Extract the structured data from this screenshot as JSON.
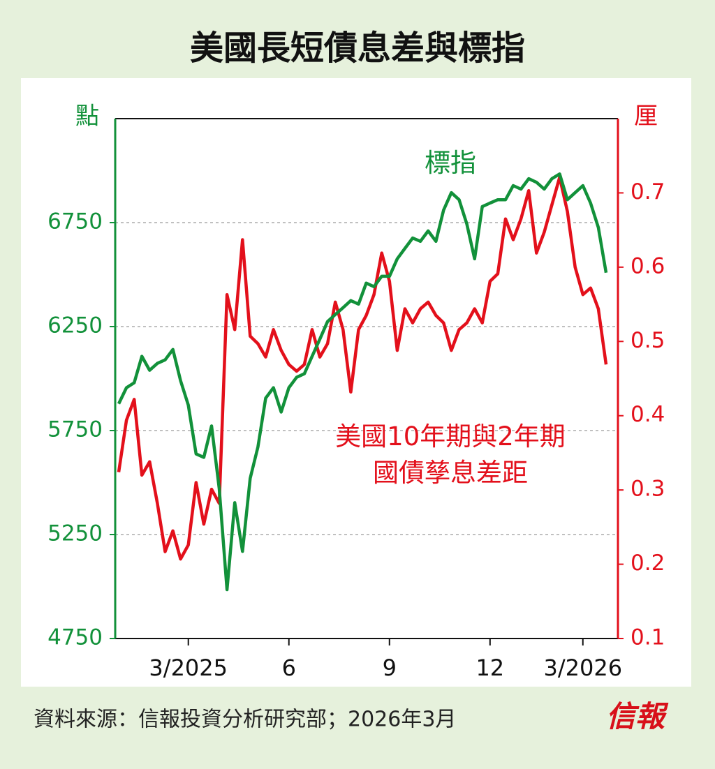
{
  "chart_data": {
    "type": "line",
    "title": "美國長短債息差與標指",
    "y_label": "點",
    "y2_label": "厘",
    "source": "資料來源：信報投資分析研究部；2026年3月",
    "publisher": "信報",
    "categories": [
      null,
      null,
      null,
      null,
      null,
      null,
      null,
      null,
      null,
      "3/2025",
      null,
      null,
      null,
      null,
      null,
      null,
      null,
      null,
      null,
      null,
      null,
      null,
      "6",
      null,
      null,
      null,
      null,
      null,
      null,
      null,
      null,
      null,
      null,
      null,
      null,
      "9",
      null,
      null,
      null,
      null,
      null,
      null,
      null,
      null,
      null,
      null,
      null,
      null,
      "12",
      null,
      null,
      null,
      null,
      null,
      null,
      null,
      null,
      null,
      null,
      null,
      "3/2026",
      null,
      null,
      null
    ],
    "ylim": [
      4750,
      7250
    ],
    "yticks": [
      4750,
      5250,
      5750,
      6250,
      6750
    ],
    "y2lim": [
      0.1,
      0.8
    ],
    "y2ticks": [
      0.1,
      0.2,
      0.3,
      0.4,
      0.5,
      0.6,
      0.7
    ],
    "grid": true,
    "series": [
      {
        "name": "標指",
        "color": "#12913a",
        "axis": "y",
        "values": [
          5879,
          5956,
          5980,
          6107,
          6040,
          6073,
          6090,
          6140,
          5990,
          5872,
          5638,
          5621,
          5772,
          5470,
          4985,
          5403,
          5169,
          5520,
          5671,
          5906,
          5956,
          5839,
          5956,
          6006,
          6023,
          6107,
          6190,
          6274,
          6308,
          6341,
          6375,
          6358,
          6459,
          6442,
          6492,
          6492,
          6576,
          6626,
          6676,
          6660,
          6710,
          6660,
          6810,
          6894,
          6860,
          6743,
          6576,
          6827,
          6844,
          6860,
          6860,
          6928,
          6911,
          6961,
          6944,
          6911,
          6961,
          6984,
          6860,
          6894,
          6928,
          6844,
          6727,
          6509
        ]
      },
      {
        "name": "美國10年期與2年期\n國債孳息差距",
        "color": "#e3101b",
        "axis": "y2",
        "values": [
          0.324,
          0.394,
          0.422,
          0.32,
          0.338,
          0.282,
          0.217,
          0.245,
          0.207,
          0.226,
          0.31,
          0.254,
          0.301,
          0.282,
          0.563,
          0.516,
          0.637,
          0.507,
          0.497,
          0.479,
          0.516,
          0.488,
          0.469,
          0.46,
          0.469,
          0.516,
          0.479,
          0.497,
          0.553,
          0.516,
          0.432,
          0.516,
          0.535,
          0.563,
          0.619,
          0.581,
          0.488,
          0.544,
          0.525,
          0.544,
          0.553,
          0.535,
          0.525,
          0.488,
          0.516,
          0.525,
          0.544,
          0.525,
          0.581,
          0.591,
          0.665,
          0.637,
          0.665,
          0.703,
          0.619,
          0.647,
          0.684,
          0.721,
          0.675,
          0.6,
          0.563,
          0.572,
          0.544,
          0.469
        ]
      }
    ]
  }
}
